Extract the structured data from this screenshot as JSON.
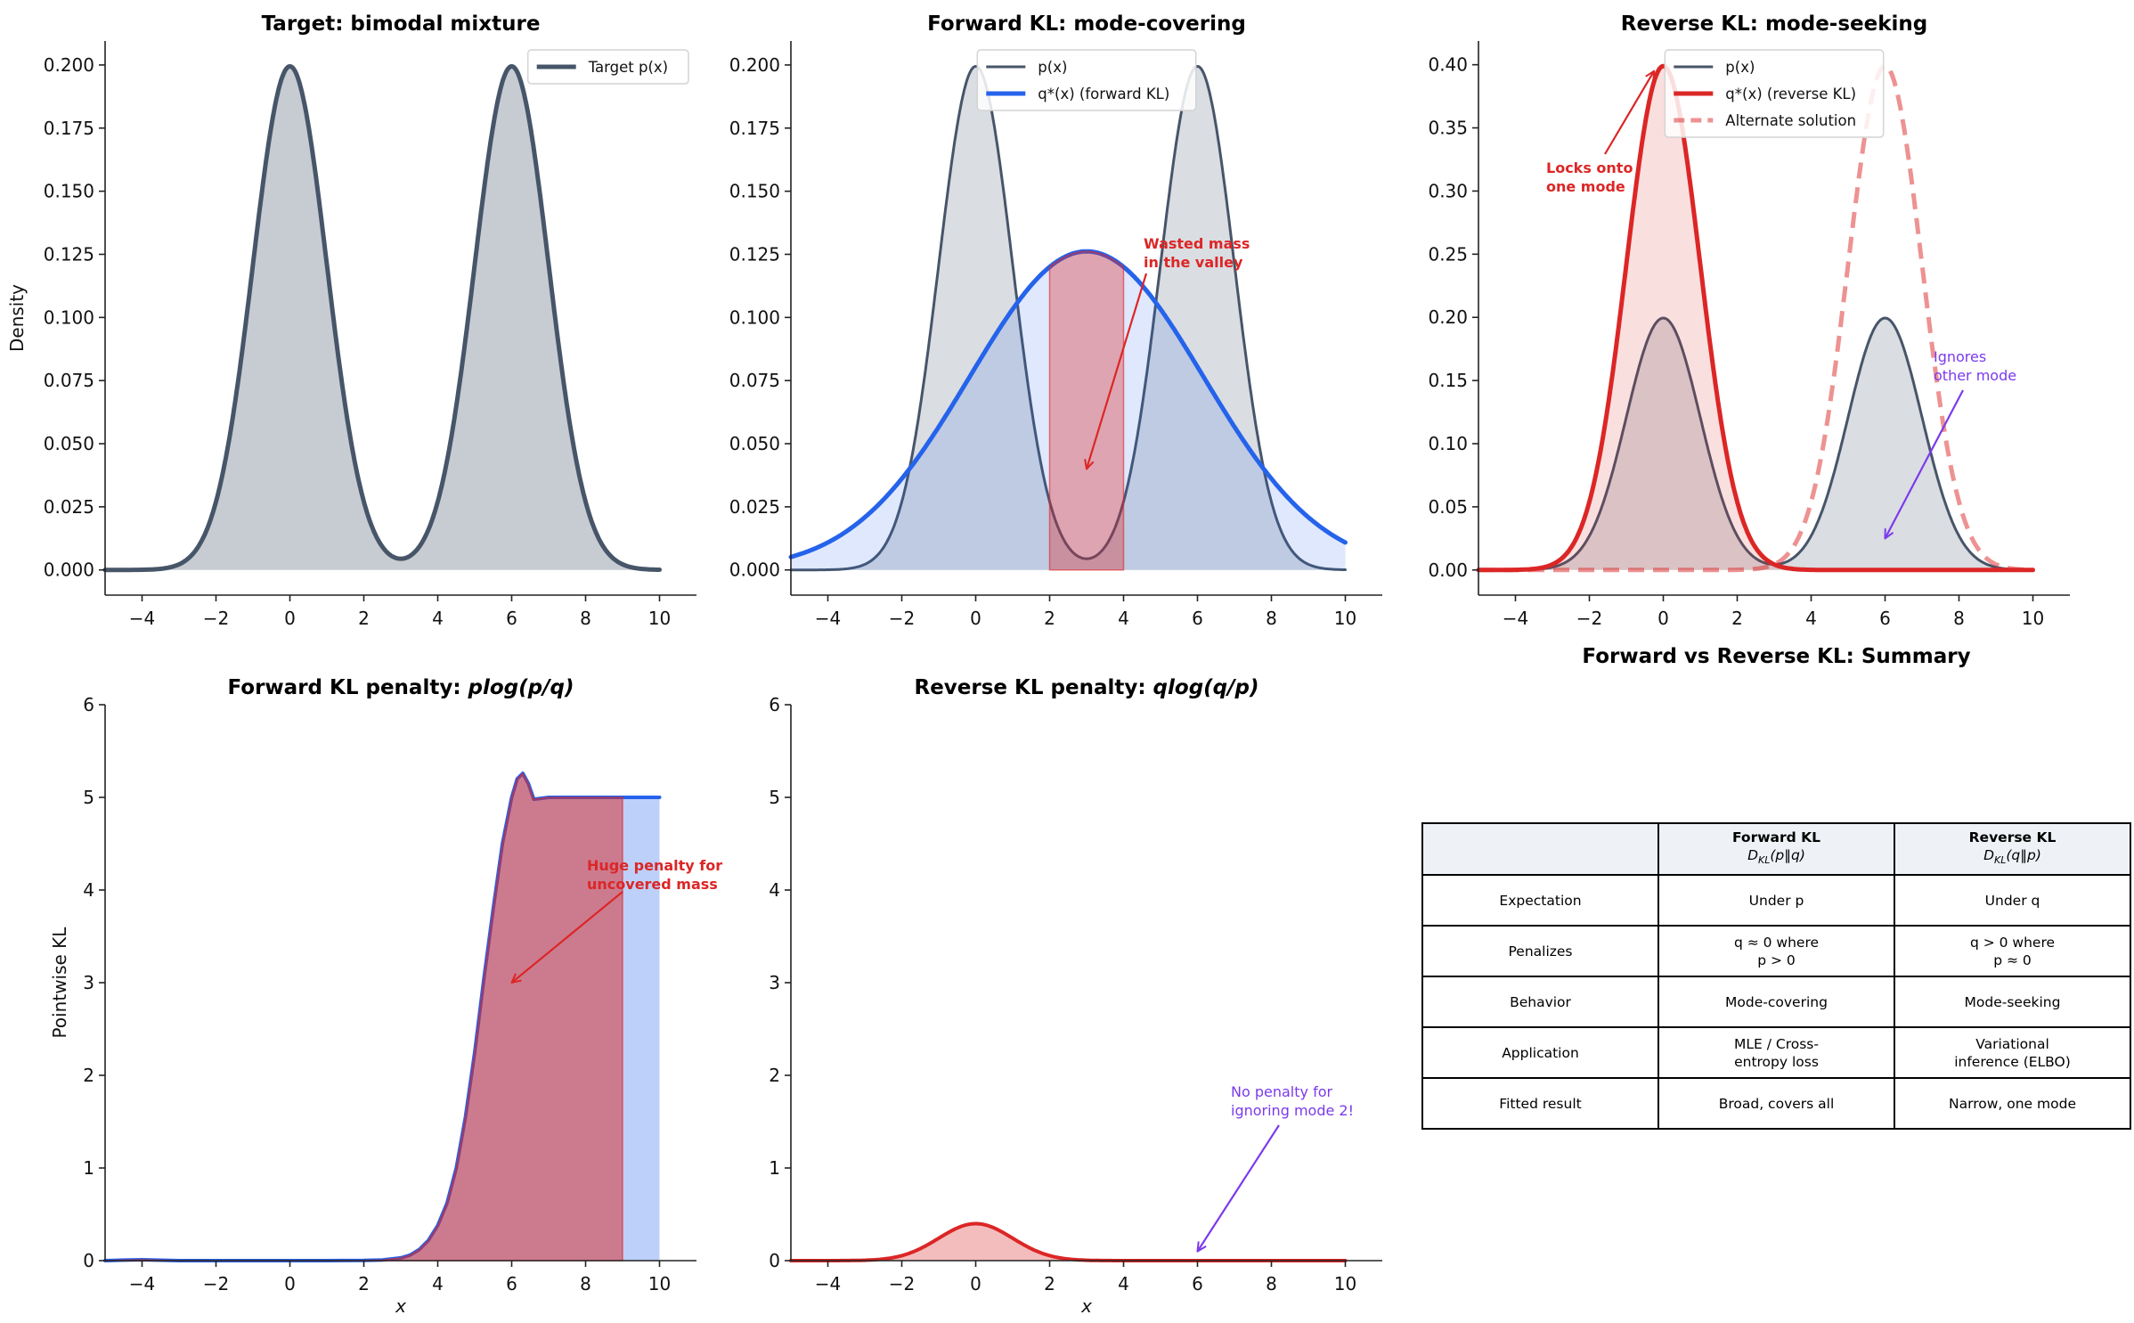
{
  "chart_data": [
    {
      "id": "target",
      "type": "line",
      "title": "Target: bimodal mixture",
      "xlabel": "",
      "ylabel": "Density",
      "xlim": [
        -5,
        11
      ],
      "ylim": [
        -0.00998,
        0.2095
      ],
      "xticks": [
        -4,
        -2,
        0,
        2,
        4,
        6,
        8,
        10
      ],
      "xtick_labels": [
        "−4",
        "−2",
        "0",
        "2",
        "4",
        "6",
        "8",
        "10"
      ],
      "yticks": [
        0,
        0.025,
        0.05,
        0.075,
        0.1,
        0.125,
        0.15,
        0.175,
        0.2
      ],
      "ytick_labels": [
        "0.000",
        "0.025",
        "0.050",
        "0.075",
        "0.100",
        "0.125",
        "0.150",
        "0.175",
        "0.200"
      ],
      "grid": false,
      "legend": "upper right",
      "series": [
        {
          "name": "Target p(x)",
          "kind": "gaussian_mixture",
          "x_range": [
            -5,
            10
          ],
          "components": [
            {
              "mean": 0,
              "std": 1,
              "weight": 0.5
            },
            {
              "mean": 6,
              "std": 1,
              "weight": 0.5
            }
          ],
          "color": "#475569",
          "linewidth": 5,
          "fill_color": "#475569",
          "fill_opacity": 0.3
        }
      ],
      "annotations": []
    },
    {
      "id": "forward-kl",
      "type": "line",
      "title": "Forward KL: mode-covering",
      "xlabel": "",
      "ylabel": "",
      "xlim": [
        -5,
        11
      ],
      "ylim": [
        -0.00998,
        0.2095
      ],
      "xticks": [
        -4,
        -2,
        0,
        2,
        4,
        6,
        8,
        10
      ],
      "xtick_labels": [
        "−4",
        "−2",
        "0",
        "2",
        "4",
        "6",
        "8",
        "10"
      ],
      "yticks": [
        0,
        0.025,
        0.05,
        0.075,
        0.1,
        0.125,
        0.15,
        0.175,
        0.2
      ],
      "ytick_labels": [
        "0.000",
        "0.025",
        "0.050",
        "0.075",
        "0.100",
        "0.125",
        "0.150",
        "0.175",
        "0.200"
      ],
      "grid": false,
      "legend": "upper center",
      "series": [
        {
          "name": "p(x)",
          "kind": "gaussian_mixture",
          "x_range": [
            -5,
            10
          ],
          "components": [
            {
              "mean": 0,
              "std": 1,
              "weight": 0.5
            },
            {
              "mean": 6,
              "std": 1,
              "weight": 0.5
            }
          ],
          "color": "#475569",
          "linewidth": 3,
          "fill_color": "#475569",
          "fill_opacity": 0.2
        },
        {
          "name": "q*(x) (forward KL)",
          "kind": "gaussian_mixture",
          "x_range": [
            -5,
            10
          ],
          "components": [
            {
              "mean": 3,
              "std": 3.162,
              "weight": 1
            }
          ],
          "color": "#2563eb",
          "linewidth": 5,
          "fill_color": "#2563eb",
          "fill_opacity": 0.15
        },
        {
          "kind": "gaussian_mixture",
          "x_range": [
            2,
            4
          ],
          "line": false,
          "components": [
            {
              "mean": 3,
              "std": 3.162,
              "weight": 1
            }
          ],
          "color": "#dc2626",
          "fill_color": "#dc2626",
          "fill_opacity": 0.35,
          "fill_edge": true
        }
      ],
      "annotations": [
        {
          "lines": [
            "Wasted mass",
            "in the valley"
          ],
          "color": "#dc2626",
          "bold": true,
          "xy": [
            3,
            0.04
          ]
        }
      ]
    },
    {
      "id": "reverse-kl",
      "type": "line",
      "title": "Reverse KL: mode-seeking",
      "xlabel": "",
      "ylabel": "",
      "xlim": [
        -5,
        11
      ],
      "ylim": [
        -0.0199,
        0.4188
      ],
      "xticks": [
        -4,
        -2,
        0,
        2,
        4,
        6,
        8,
        10
      ],
      "xtick_labels": [
        "−4",
        "−2",
        "0",
        "2",
        "4",
        "6",
        "8",
        "10"
      ],
      "yticks": [
        0,
        0.05,
        0.1,
        0.15,
        0.2,
        0.25,
        0.3,
        0.35,
        0.4
      ],
      "ytick_labels": [
        "0.00",
        "0.05",
        "0.10",
        "0.15",
        "0.20",
        "0.25",
        "0.30",
        "0.35",
        "0.40"
      ],
      "grid": false,
      "legend": "upper center",
      "series": [
        {
          "name": "p(x)",
          "kind": "gaussian_mixture",
          "x_range": [
            -5,
            10
          ],
          "components": [
            {
              "mean": 0,
              "std": 1,
              "weight": 0.5
            },
            {
              "mean": 6,
              "std": 1,
              "weight": 0.5
            }
          ],
          "color": "#475569",
          "linewidth": 3,
          "fill_color": "#475569",
          "fill_opacity": 0.2
        },
        {
          "name": "q*(x) (reverse KL)",
          "kind": "gaussian_mixture",
          "x_range": [
            -5,
            10
          ],
          "components": [
            {
              "mean": 0,
              "std": 1,
              "weight": 1
            }
          ],
          "color": "#dc2626",
          "linewidth": 5,
          "fill_color": "#dc2626",
          "fill_opacity": 0.15
        },
        {
          "name": "Alternate solution",
          "kind": "gaussian_mixture",
          "x_range": [
            -5,
            10
          ],
          "components": [
            {
              "mean": 6,
              "std": 1,
              "weight": 1
            }
          ],
          "color": "#dc2626",
          "linewidth": 5,
          "opacity": 0.5,
          "dashed": true
        }
      ],
      "annotations": [
        {
          "lines": [
            "Locks onto",
            "one mode"
          ],
          "color": "#dc2626",
          "bold": true,
          "xy": [
            -0.25,
            0.395
          ]
        },
        {
          "lines": [
            "Ignores",
            "other mode"
          ],
          "color": "#7c3aed",
          "bold": false,
          "xy": [
            6,
            0.025
          ]
        }
      ]
    },
    {
      "id": "forward-penalty",
      "type": "area",
      "title": "Forward KL penalty: ",
      "title_math": "plog(p/q)",
      "xlabel": "x",
      "ylabel": "Pointwise KL",
      "xlim": [
        -5,
        11
      ],
      "ylim": [
        0,
        6
      ],
      "xticks": [
        -4,
        -2,
        0,
        2,
        4,
        6,
        8,
        10
      ],
      "xtick_labels": [
        "−4",
        "−2",
        "0",
        "2",
        "4",
        "6",
        "8",
        "10"
      ],
      "yticks": [
        0,
        1,
        2,
        3,
        4,
        5,
        6
      ],
      "ytick_labels": [
        "0",
        "1",
        "2",
        "3",
        "4",
        "5",
        "6"
      ],
      "grid": false,
      "legend": "none",
      "series": [
        {
          "kind": "points",
          "x": [
            -5,
            -4.5,
            -4,
            -3.5,
            -3,
            -2,
            -1,
            0,
            1,
            2,
            2.5,
            3,
            3.25,
            3.5,
            3.75,
            4,
            4.25,
            4.5,
            4.75,
            5,
            5.25,
            5.5,
            5.75,
            6,
            6.15,
            6.3,
            6.45,
            6.6,
            7,
            8,
            9,
            10
          ],
          "y": [
            0,
            0.006,
            0.01,
            0.005,
            0,
            0,
            0,
            0,
            0,
            0.002,
            0.008,
            0.03,
            0.06,
            0.12,
            0.22,
            0.38,
            0.62,
            1.0,
            1.55,
            2.25,
            3.05,
            3.8,
            4.5,
            5.0,
            5.2,
            5.26,
            5.15,
            4.98,
            5,
            5,
            5,
            5
          ],
          "color": "#2563eb",
          "linewidth": 4,
          "fill_color": "#2563eb",
          "fill_opacity": 0.3
        },
        {
          "kind": "points",
          "line": false,
          "clip_range": [
            -5,
            9
          ],
          "x": [
            -5,
            -4.5,
            -4,
            -3.5,
            -3,
            -2,
            -1,
            0,
            1,
            2,
            2.5,
            3,
            3.25,
            3.5,
            3.75,
            4,
            4.25,
            4.5,
            4.75,
            5,
            5.25,
            5.5,
            5.75,
            6,
            6.15,
            6.3,
            6.45,
            6.6,
            7,
            8,
            9
          ],
          "y": [
            0,
            0.006,
            0.01,
            0.005,
            0,
            0,
            0,
            0,
            0,
            0.002,
            0.008,
            0.03,
            0.06,
            0.12,
            0.22,
            0.38,
            0.62,
            1.0,
            1.55,
            2.25,
            3.05,
            3.8,
            4.5,
            5.0,
            5.2,
            5.26,
            5.15,
            4.98,
            5,
            5,
            5
          ],
          "color": "#dc2626",
          "fill_color": "#dc2626",
          "fill_opacity": 0.5,
          "fill_edge": true
        }
      ],
      "annotations": [
        {
          "lines": [
            "Huge penalty for",
            "uncovered mass"
          ],
          "color": "#dc2626",
          "bold": true,
          "xy": [
            6,
            3
          ]
        }
      ]
    },
    {
      "id": "reverse-penalty",
      "type": "area",
      "title": "Reverse KL penalty: ",
      "title_math": "qlog(q/p)",
      "xlabel": "x",
      "ylabel": "",
      "xlim": [
        -5,
        11
      ],
      "ylim": [
        0,
        6
      ],
      "xticks": [
        -4,
        -2,
        0,
        2,
        4,
        6,
        8,
        10
      ],
      "xtick_labels": [
        "−4",
        "−2",
        "0",
        "2",
        "4",
        "6",
        "8",
        "10"
      ],
      "yticks": [
        0,
        1,
        2,
        3,
        4,
        5,
        6
      ],
      "ytick_labels": [
        "0",
        "1",
        "2",
        "3",
        "4",
        "5",
        "6"
      ],
      "grid": false,
      "legend": "none",
      "series": [
        {
          "kind": "gaussian_mixture",
          "x_range": [
            -5,
            10
          ],
          "components": [
            {
              "mean": 0,
              "std": 1,
              "weight": 1
            }
          ],
          "color": "#dc2626",
          "linewidth": 4,
          "fill_color": "#dc2626",
          "fill_opacity": 0.3
        }
      ],
      "annotations": [
        {
          "lines": [
            "No penalty for",
            "ignoring mode 2!"
          ],
          "color": "#7c3aed",
          "bold": false,
          "xy": [
            6,
            0.1
          ]
        }
      ]
    }
  ],
  "summary": {
    "title": "Forward vs Reverse KL: Summary",
    "header": [
      {
        "name": "",
        "symbol": "",
        "subscript": "",
        "args": ""
      },
      {
        "name": "Forward KL",
        "symbol": "D",
        "subscript": "KL",
        "args": "(p‖q)"
      },
      {
        "name": "Reverse KL",
        "symbol": "D",
        "subscript": "KL",
        "args": "(q‖p)"
      }
    ],
    "rows": [
      [
        [
          "Expectation"
        ],
        [
          "Under p"
        ],
        [
          "Under q"
        ]
      ],
      [
        [
          "Penalizes"
        ],
        [
          "q ≈ 0 where",
          "p > 0"
        ],
        [
          "q > 0 where",
          "p ≈ 0"
        ]
      ],
      [
        [
          "Behavior"
        ],
        [
          "Mode-covering"
        ],
        [
          "Mode-seeking"
        ]
      ],
      [
        [
          "Application"
        ],
        [
          "MLE / Cross-",
          "entropy loss"
        ],
        [
          "Variational",
          "inference (ELBO)"
        ]
      ],
      [
        [
          "Fitted result"
        ],
        [
          "Broad, covers all"
        ],
        [
          "Narrow, one mode"
        ]
      ]
    ]
  }
}
